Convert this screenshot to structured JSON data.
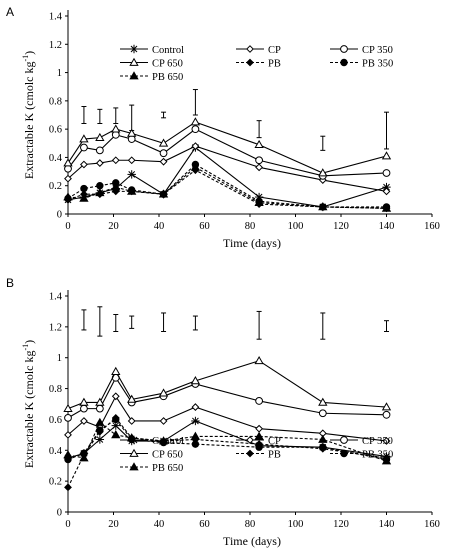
{
  "chart_data": [
    {
      "type": "line",
      "panel_label": "A",
      "xlabel": "Time (days)",
      "ylabel": "Extractable K (cmolc kg",
      "ylabel_sup": "-1",
      "ylabel_tail": ")",
      "xlim": [
        0,
        160
      ],
      "ylim": [
        0,
        1.4
      ],
      "xticks": [
        0,
        20,
        40,
        60,
        80,
        100,
        120,
        140,
        160
      ],
      "xtick_labels": [
        "0",
        "20",
        "40",
        "60",
        "80",
        "100",
        "120",
        "140",
        "160"
      ],
      "yticks": [
        0,
        0.2,
        0.4,
        0.6,
        0.8,
        1.0,
        1.2,
        1.4
      ],
      "ytick_labels": [
        "0",
        "0.2",
        "0.4",
        "0.6",
        "0.8",
        "1",
        "1.2",
        "1.4"
      ],
      "x": [
        0,
        7,
        14,
        21,
        28,
        42,
        56,
        84,
        112,
        140
      ],
      "legend_position": "top",
      "series": [
        {
          "name": "Control",
          "marker": "star",
          "dash": false,
          "values": [
            0.1,
            0.12,
            0.15,
            0.18,
            0.28,
            0.14,
            0.47,
            0.12,
            0.05,
            0.19
          ]
        },
        {
          "name": "CP",
          "marker": "diamond",
          "dash": false,
          "values": [
            0.25,
            0.35,
            0.36,
            0.38,
            0.38,
            0.37,
            0.48,
            0.33,
            0.24,
            0.16
          ]
        },
        {
          "name": "CP 350",
          "marker": "circle",
          "dash": false,
          "values": [
            0.32,
            0.47,
            0.45,
            0.56,
            0.53,
            0.43,
            0.6,
            0.38,
            0.27,
            0.29
          ]
        },
        {
          "name": "CP 650",
          "marker": "triangle",
          "dash": false,
          "values": [
            0.36,
            0.53,
            0.54,
            0.6,
            0.57,
            0.5,
            0.65,
            0.49,
            0.29,
            0.41
          ]
        },
        {
          "name": "PB",
          "marker": "diamond-filled",
          "dash": true,
          "values": [
            0.1,
            0.14,
            0.14,
            0.16,
            0.16,
            0.14,
            0.31,
            0.07,
            0.05,
            0.04
          ]
        },
        {
          "name": "PB 350",
          "marker": "circle-filled",
          "dash": true,
          "values": [
            0.11,
            0.18,
            0.2,
            0.22,
            0.17,
            0.14,
            0.35,
            0.09,
            0.05,
            0.05
          ]
        },
        {
          "name": "PB 650",
          "marker": "triangle-filled",
          "dash": true,
          "values": [
            0.12,
            0.11,
            0.15,
            0.19,
            0.16,
            0.14,
            0.33,
            0.08,
            0.05,
            0.04
          ]
        }
      ],
      "error_bars": [
        {
          "x": 7,
          "low": 0.64,
          "high": 0.76
        },
        {
          "x": 14,
          "low": 0.64,
          "high": 0.74
        },
        {
          "x": 21,
          "low": 0.64,
          "high": 0.75
        },
        {
          "x": 28,
          "low": 0.59,
          "high": 0.77
        },
        {
          "x": 42,
          "low": 0.68,
          "high": 0.72
        },
        {
          "x": 56,
          "low": 0.7,
          "high": 0.88
        },
        {
          "x": 84,
          "low": 0.54,
          "high": 0.66
        },
        {
          "x": 112,
          "low": 0.45,
          "high": 0.55
        },
        {
          "x": 140,
          "low": 0.46,
          "high": 0.72
        }
      ]
    },
    {
      "type": "line",
      "panel_label": "B",
      "xlabel": "Time (days)",
      "ylabel": "Extractable K (cmolc kg",
      "ylabel_sup": "-1",
      "ylabel_tail": ")",
      "xlim": [
        0,
        160
      ],
      "ylim": [
        0,
        1.4
      ],
      "xticks": [
        0,
        20,
        40,
        60,
        80,
        100,
        120,
        140,
        160
      ],
      "xtick_labels": [
        "0",
        "20",
        "40",
        "60",
        "80",
        "100",
        "120",
        "140",
        "160"
      ],
      "yticks": [
        0,
        0.2,
        0.4,
        0.6,
        0.8,
        1.0,
        1.2,
        1.4
      ],
      "ytick_labels": [
        "0",
        "0.2",
        "0.4",
        "0.6",
        "0.8",
        "1",
        "1.2",
        "1.4"
      ],
      "x": [
        0,
        7,
        14,
        21,
        28,
        42,
        56,
        84,
        112,
        140
      ],
      "legend_position": "bottom",
      "series": [
        {
          "name": "Control",
          "marker": "star",
          "dash": false,
          "values": [
            0.35,
            0.38,
            0.47,
            0.56,
            0.46,
            0.46,
            0.59,
            0.43,
            0.42,
            0.36
          ]
        },
        {
          "name": "CP",
          "marker": "diamond",
          "dash": false,
          "values": [
            0.5,
            0.59,
            0.55,
            0.75,
            0.59,
            0.59,
            0.68,
            0.54,
            0.51,
            0.46
          ]
        },
        {
          "name": "CP 350",
          "marker": "circle",
          "dash": false,
          "values": [
            0.61,
            0.67,
            0.67,
            0.87,
            0.71,
            0.75,
            0.83,
            0.72,
            0.64,
            0.63
          ]
        },
        {
          "name": "CP 650",
          "marker": "triangle",
          "dash": false,
          "values": [
            0.67,
            0.71,
            0.71,
            0.91,
            0.73,
            0.77,
            0.85,
            0.98,
            0.71,
            0.68
          ]
        },
        {
          "name": "PB",
          "marker": "diamond-filled",
          "dash": true,
          "values": [
            0.16,
            0.37,
            0.52,
            0.61,
            0.48,
            0.46,
            0.47,
            0.44,
            0.41,
            0.35
          ]
        },
        {
          "name": "PB 350",
          "marker": "circle-filled",
          "dash": true,
          "values": [
            0.34,
            0.38,
            0.53,
            0.6,
            0.47,
            0.45,
            0.44,
            0.42,
            0.42,
            0.34
          ]
        },
        {
          "name": "PB 650",
          "marker": "triangle-filled",
          "dash": true,
          "values": [
            0.37,
            0.35,
            0.58,
            0.5,
            0.48,
            0.46,
            0.49,
            0.49,
            0.47,
            0.33
          ]
        }
      ],
      "error_bars": [
        {
          "x": 7,
          "low": 1.18,
          "high": 1.31
        },
        {
          "x": 14,
          "low": 1.14,
          "high": 1.33
        },
        {
          "x": 21,
          "low": 1.17,
          "high": 1.28
        },
        {
          "x": 28,
          "low": 1.19,
          "high": 1.27
        },
        {
          "x": 42,
          "low": 1.17,
          "high": 1.29
        },
        {
          "x": 56,
          "low": 1.18,
          "high": 1.27
        },
        {
          "x": 84,
          "low": 1.12,
          "high": 1.3
        },
        {
          "x": 112,
          "low": 1.12,
          "high": 1.29
        },
        {
          "x": 140,
          "low": 1.17,
          "high": 1.24
        }
      ]
    }
  ]
}
